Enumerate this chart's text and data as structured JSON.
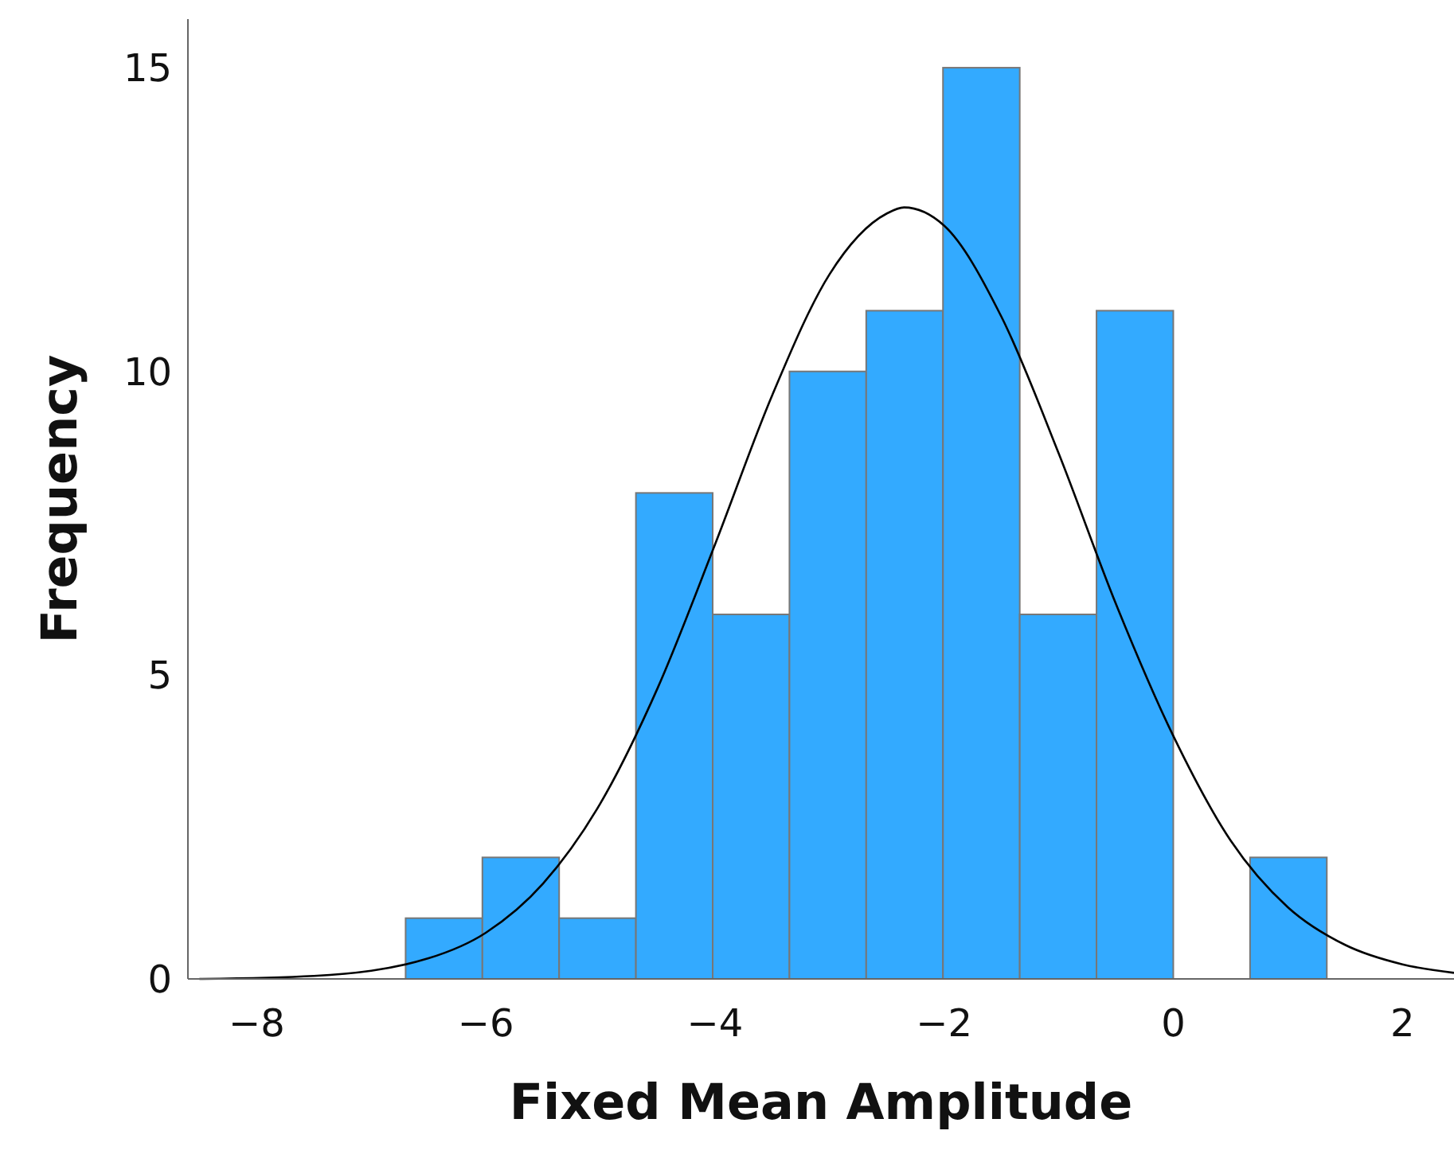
{
  "chart_data": {
    "type": "histogram",
    "xlabel": "Fixed Mean Amplitude",
    "ylabel": "Frequency",
    "bins": [
      -6.7,
      -6.03,
      -5.36,
      -4.69,
      -4.02,
      -3.35,
      -2.68,
      -2.01,
      -1.34,
      -0.67,
      0,
      0.67,
      1.34
    ],
    "values": [
      1,
      2,
      1,
      8,
      6,
      10,
      11,
      15,
      6,
      11,
      0,
      2
    ],
    "color": "#33aaff",
    "series": [
      {
        "type": "line",
        "color": "#000000",
        "x": [
          -8.5,
          -7.5,
          -6.5,
          -6,
          -5.5,
          -5,
          -4.5,
          -4,
          -3.5,
          -3,
          -2.5,
          -2.35,
          -2,
          -1.5,
          -1,
          -0.5,
          0,
          0.5,
          1,
          1.5,
          2,
          2.45
        ],
        "values": [
          0,
          0.05,
          0.34,
          0.76,
          1.57,
          2.89,
          4.79,
          7.15,
          9.61,
          11.6,
          12.6,
          12.7,
          12.4,
          10.9,
          8.65,
          6.17,
          4.0,
          2.28,
          1.18,
          0.56,
          0.24,
          0.1
        ]
      }
    ],
    "xlim": [
      -8.6,
      2.45
    ],
    "xticks": [
      {
        "value": -8,
        "label": "−8"
      },
      {
        "value": -6,
        "label": "−6"
      },
      {
        "value": -4,
        "label": "−4"
      },
      {
        "value": -2,
        "label": "−2"
      },
      0,
      2
    ],
    "ylim": [
      0,
      15.8
    ],
    "yticks": [
      0,
      5,
      10,
      15
    ],
    "grid": false
  }
}
